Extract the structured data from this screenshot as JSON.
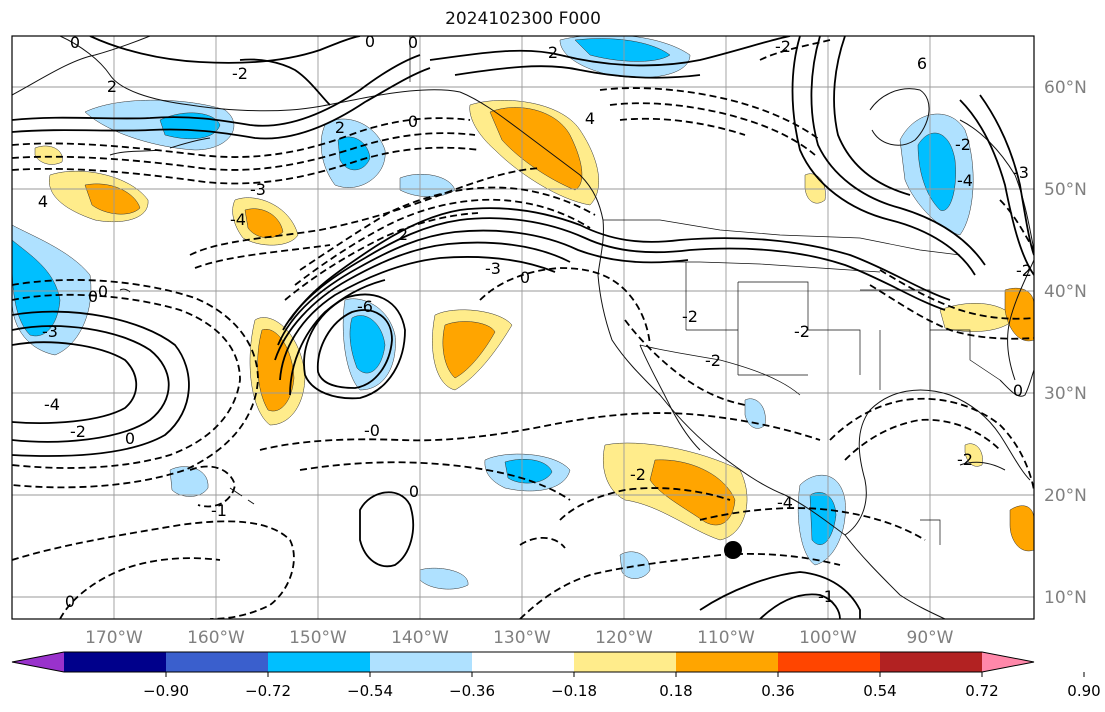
{
  "title": "2024102300 F000",
  "map": {
    "lat_labels": [
      "60°N",
      "50°N",
      "40°N",
      "30°N",
      "20°N",
      "10°N"
    ],
    "lon_labels": [
      "170°W",
      "160°W",
      "150°W",
      "140°W",
      "130°W",
      "120°W",
      "110°W",
      "100°W",
      "90°W"
    ],
    "contour_labels": [
      "0",
      "2",
      "0",
      "-2",
      "6",
      "2",
      "0",
      "2",
      "0",
      "0",
      "-2",
      "4",
      "2",
      "4",
      "-3",
      "-4",
      "-2",
      "-4",
      "-3",
      "-2",
      "0",
      "-3",
      "-6",
      "-3",
      "0",
      "-2",
      "-2",
      "-2",
      "0",
      "-4",
      "-2",
      "0",
      "-0",
      "-1",
      "0",
      "-4",
      "-2",
      "-2",
      "-1",
      "0"
    ]
  },
  "colorbar": {
    "colors": [
      "#9932cc",
      "#00008b",
      "#3a5fcd",
      "#00bfff",
      "#afe1ff",
      "#ffffff",
      "#ffec8b",
      "#ffa500",
      "#ff4500",
      "#b22222",
      "#ff88aa"
    ],
    "tick_labels": [
      "−0.90",
      "−0.72",
      "−0.54",
      "−0.36",
      "−0.18",
      "0.18",
      "0.36",
      "0.54",
      "0.72",
      "0.90"
    ]
  }
}
